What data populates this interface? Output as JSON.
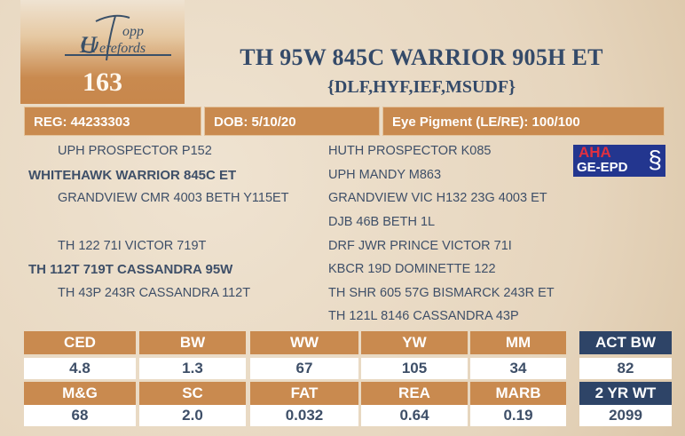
{
  "logo": {
    "text": "Topp Herefords"
  },
  "lot_number": "163",
  "title": "TH 95W 845C WARRIOR 905H ET",
  "subtitle": "{DLF,HYF,IEF,MSUDF}",
  "info": {
    "reg": "REG: 44233303",
    "dob": "DOB: 5/10/20",
    "eye": "Eye Pigment (LE/RE): 100/100"
  },
  "pedigree": {
    "left": [
      {
        "name": "UPH PROSPECTOR P152",
        "bold": false
      },
      {
        "name": "WHITEHAWK WARRIOR 845C ET",
        "bold": true
      },
      {
        "name": "GRANDVIEW CMR 4003 BETH Y115ET",
        "bold": false
      },
      {
        "name": "TH 122 71I VICTOR 719T",
        "bold": false
      },
      {
        "name": "TH 112T 719T CASSANDRA 95W",
        "bold": true
      },
      {
        "name": "TH 43P 243R CASSANDRA 112T",
        "bold": false
      }
    ],
    "right": [
      "HUTH PROSPECTOR K085",
      "UPH MANDY M863",
      "GRANDVIEW VIC H132 23G 4003 ET",
      "DJB 46B BETH 1L",
      "DRF JWR PRINCE VICTOR 71I",
      "KBCR 19D DOMINETTE 122",
      "TH SHR 605 57G BISMARCK 243R ET",
      "TH 121L 8146 CASSANDRA 43P"
    ]
  },
  "badge": {
    "line1": "AHA",
    "line2": "GE-EPD",
    "icon": "dna-icon"
  },
  "epd": {
    "row1": {
      "headers": [
        "CED",
        "BW",
        "WW",
        "YW",
        "MM"
      ],
      "values": [
        "4.8",
        "1.3",
        "67",
        "105",
        "34"
      ]
    },
    "row2": {
      "headers": [
        "M&G",
        "SC",
        "FAT",
        "REA",
        "MARB"
      ],
      "values": [
        "68",
        "2.0",
        "0.032",
        "0.64",
        "0.19"
      ]
    },
    "act_bw": {
      "label": "ACT BW",
      "value": "82"
    },
    "yr_wt": {
      "label": "2 YR WT",
      "value": "2099"
    }
  },
  "colors": {
    "accent": "#c98a4f",
    "navy": "#2e4467",
    "text": "#3e4f68"
  }
}
